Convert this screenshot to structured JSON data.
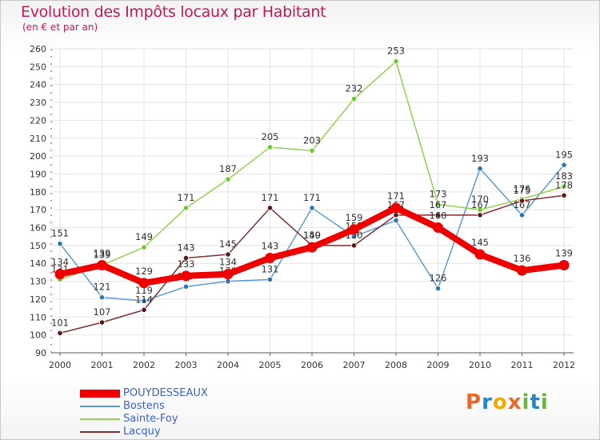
{
  "header": {
    "title": "Evolution des Impôts locaux par Habitant",
    "subtitle": "(en € et par an)"
  },
  "logo": {
    "letters": [
      "P",
      "r",
      "o",
      "x",
      "i",
      "t",
      "i"
    ],
    "colors": [
      "#e8682a",
      "#1e88c8",
      "#f2a900",
      "#e8682a",
      "#6cb33f",
      "#1e88c8",
      "#6cb33f"
    ]
  },
  "chart_data": {
    "type": "line",
    "title": "Evolution des Impôts locaux par Habitant",
    "subtitle": "(en € et par an)",
    "xlabel": "",
    "ylabel": "",
    "ylim": [
      90,
      260
    ],
    "yticks": [
      90,
      100,
      110,
      120,
      130,
      140,
      150,
      160,
      170,
      180,
      190,
      200,
      210,
      220,
      230,
      240,
      250,
      260
    ],
    "x": [
      "2000",
      "2001",
      "2002",
      "2003",
      "2004",
      "2005",
      "2006",
      "2007",
      "2008",
      "2009",
      "2010",
      "2011",
      "2012"
    ],
    "series": [
      {
        "name": "Bostens",
        "color": "#5b9bd5",
        "point_color": "#2e75b6",
        "values": [
          151,
          121,
          119,
          127,
          130,
          131,
          171,
          155,
          164,
          126,
          193,
          167,
          195
        ],
        "labels": [
          "151",
          "121",
          "119",
          "127",
          "130",
          "131",
          "171",
          "155",
          "164",
          "126",
          "193",
          "167",
          "195"
        ]
      },
      {
        "name": "Sainte-Foy",
        "color": "#92d050",
        "point_color": "#6cc92e",
        "values": [
          131,
          139,
          149,
          171,
          187,
          205,
          203,
          232,
          253,
          173,
          170,
          176,
          183
        ],
        "labels": [
          "131",
          "139",
          "149",
          "171",
          "187",
          "205",
          "203",
          "232",
          "253",
          "173",
          "170",
          "176",
          "183"
        ]
      },
      {
        "name": "Lacquy",
        "color": "#7f2f2f",
        "point_color": "#5a1a1a",
        "values": [
          101,
          107,
          114,
          143,
          145,
          171,
          150,
          150,
          167,
          167,
          167,
          175,
          178
        ],
        "labels": [
          "101",
          "107",
          "114",
          "143",
          "145",
          "171",
          "150",
          "150",
          "167",
          "167",
          "167",
          "175",
          "178"
        ]
      },
      {
        "name": "POUYDESSEAUX",
        "color": "#ee0000",
        "point_color": "#ee0000",
        "values": [
          134,
          139,
          129,
          133,
          134,
          143,
          149,
          159,
          171,
          160,
          145,
          136,
          139
        ],
        "labels": [
          "134",
          "139",
          "129",
          "133",
          "134",
          "143",
          "149",
          "159",
          "171",
          "160",
          "145",
          "136",
          "139"
        ]
      }
    ],
    "legend": [
      {
        "name": "POUYDESSEAUX",
        "color": "#ee0000"
      },
      {
        "name": "Bostens",
        "color": "#5b9bd5"
      },
      {
        "name": "Sainte-Foy",
        "color": "#92d050"
      },
      {
        "name": "Lacquy",
        "color": "#7f2f2f"
      }
    ]
  }
}
